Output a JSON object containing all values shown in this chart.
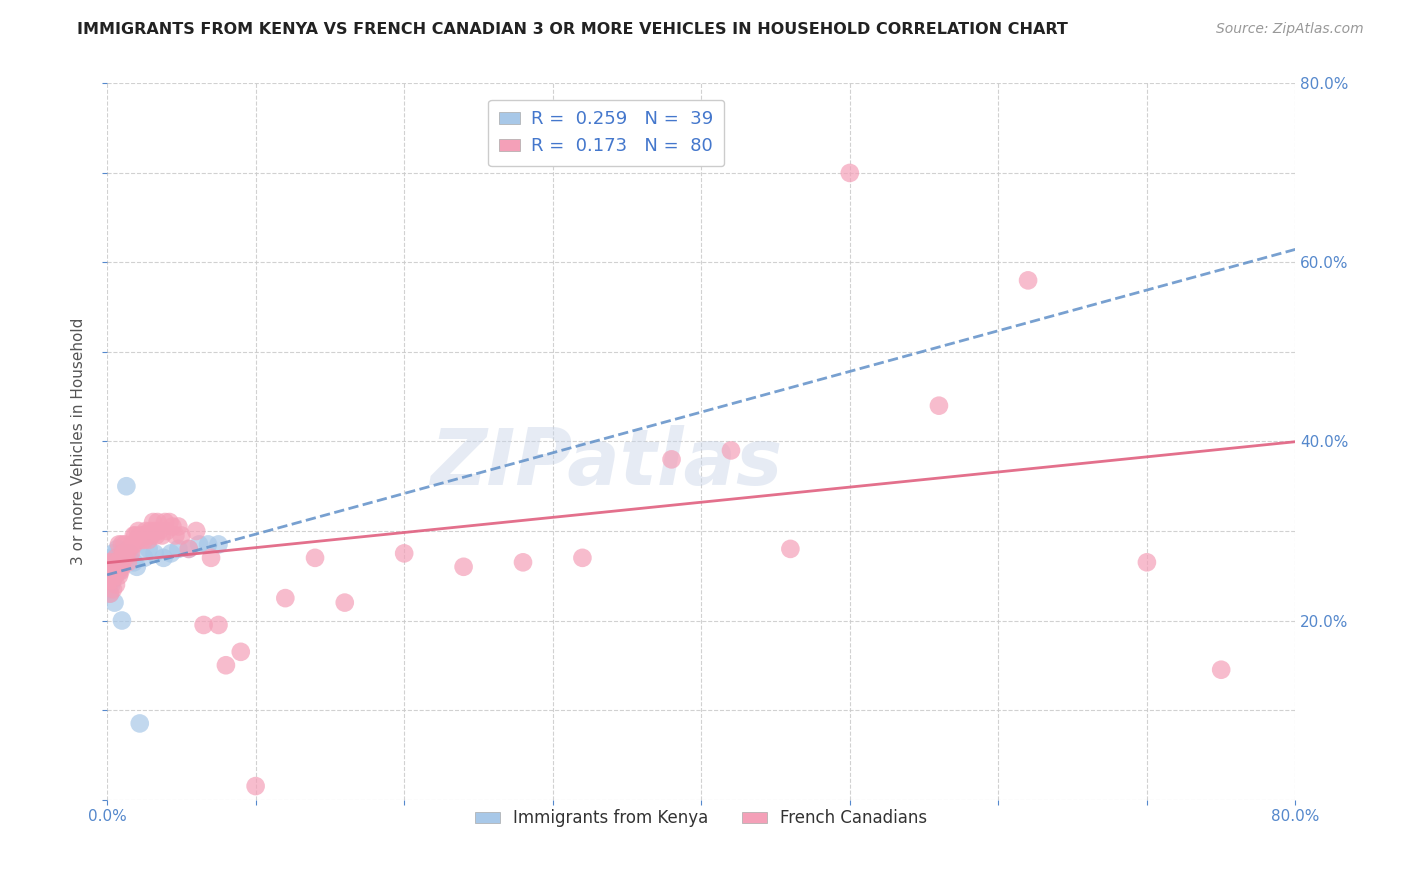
{
  "title": "IMMIGRANTS FROM KENYA VS FRENCH CANADIAN 3 OR MORE VEHICLES IN HOUSEHOLD CORRELATION CHART",
  "source": "Source: ZipAtlas.com",
  "ylabel": "3 or more Vehicles in Household",
  "xlim": [
    0.0,
    0.8
  ],
  "ylim": [
    0.0,
    0.8
  ],
  "color_kenya": "#a8c8e8",
  "color_french": "#f4a0b8",
  "trendline_kenya_color": "#6090c8",
  "trendline_french_color": "#e06080",
  "watermark": "ZIPatlas",
  "kenya_x": [
    0.0005,
    0.001,
    0.001,
    0.0015,
    0.002,
    0.002,
    0.0025,
    0.003,
    0.003,
    0.003,
    0.004,
    0.004,
    0.004,
    0.005,
    0.005,
    0.005,
    0.006,
    0.006,
    0.007,
    0.007,
    0.008,
    0.009,
    0.01,
    0.011,
    0.013,
    0.015,
    0.018,
    0.02,
    0.022,
    0.025,
    0.028,
    0.032,
    0.038,
    0.043,
    0.048,
    0.055,
    0.062,
    0.068,
    0.075
  ],
  "kenya_y": [
    0.245,
    0.235,
    0.265,
    0.25,
    0.23,
    0.255,
    0.26,
    0.24,
    0.255,
    0.27,
    0.245,
    0.265,
    0.275,
    0.25,
    0.26,
    0.22,
    0.255,
    0.27,
    0.26,
    0.28,
    0.255,
    0.265,
    0.2,
    0.27,
    0.35,
    0.275,
    0.265,
    0.26,
    0.085,
    0.27,
    0.28,
    0.275,
    0.27,
    0.275,
    0.28,
    0.28,
    0.285,
    0.285,
    0.285
  ],
  "french_x": [
    0.0005,
    0.001,
    0.001,
    0.0015,
    0.002,
    0.002,
    0.003,
    0.003,
    0.004,
    0.004,
    0.005,
    0.005,
    0.006,
    0.006,
    0.007,
    0.007,
    0.008,
    0.008,
    0.009,
    0.009,
    0.01,
    0.01,
    0.011,
    0.012,
    0.012,
    0.013,
    0.014,
    0.015,
    0.016,
    0.017,
    0.018,
    0.018,
    0.019,
    0.02,
    0.021,
    0.022,
    0.023,
    0.024,
    0.025,
    0.026,
    0.027,
    0.028,
    0.029,
    0.03,
    0.031,
    0.032,
    0.033,
    0.034,
    0.035,
    0.037,
    0.039,
    0.04,
    0.042,
    0.044,
    0.046,
    0.048,
    0.05,
    0.055,
    0.06,
    0.065,
    0.07,
    0.075,
    0.08,
    0.09,
    0.1,
    0.12,
    0.14,
    0.16,
    0.2,
    0.24,
    0.28,
    0.32,
    0.38,
    0.42,
    0.46,
    0.5,
    0.56,
    0.62,
    0.7,
    0.75
  ],
  "french_y": [
    0.25,
    0.245,
    0.265,
    0.255,
    0.23,
    0.25,
    0.245,
    0.255,
    0.235,
    0.265,
    0.25,
    0.26,
    0.24,
    0.27,
    0.255,
    0.265,
    0.25,
    0.285,
    0.255,
    0.27,
    0.26,
    0.285,
    0.275,
    0.27,
    0.285,
    0.275,
    0.265,
    0.28,
    0.275,
    0.285,
    0.295,
    0.285,
    0.295,
    0.29,
    0.3,
    0.295,
    0.29,
    0.295,
    0.29,
    0.3,
    0.295,
    0.29,
    0.3,
    0.295,
    0.31,
    0.3,
    0.295,
    0.31,
    0.3,
    0.295,
    0.31,
    0.3,
    0.31,
    0.305,
    0.295,
    0.305,
    0.295,
    0.28,
    0.3,
    0.195,
    0.27,
    0.195,
    0.15,
    0.165,
    0.015,
    0.225,
    0.27,
    0.22,
    0.275,
    0.26,
    0.265,
    0.27,
    0.38,
    0.39,
    0.28,
    0.7,
    0.44,
    0.58,
    0.265,
    0.145
  ],
  "kenya_trend_x0": 0.0,
  "kenya_trend_x1": 0.8,
  "french_trend_x0": 0.0,
  "french_trend_x1": 0.8
}
